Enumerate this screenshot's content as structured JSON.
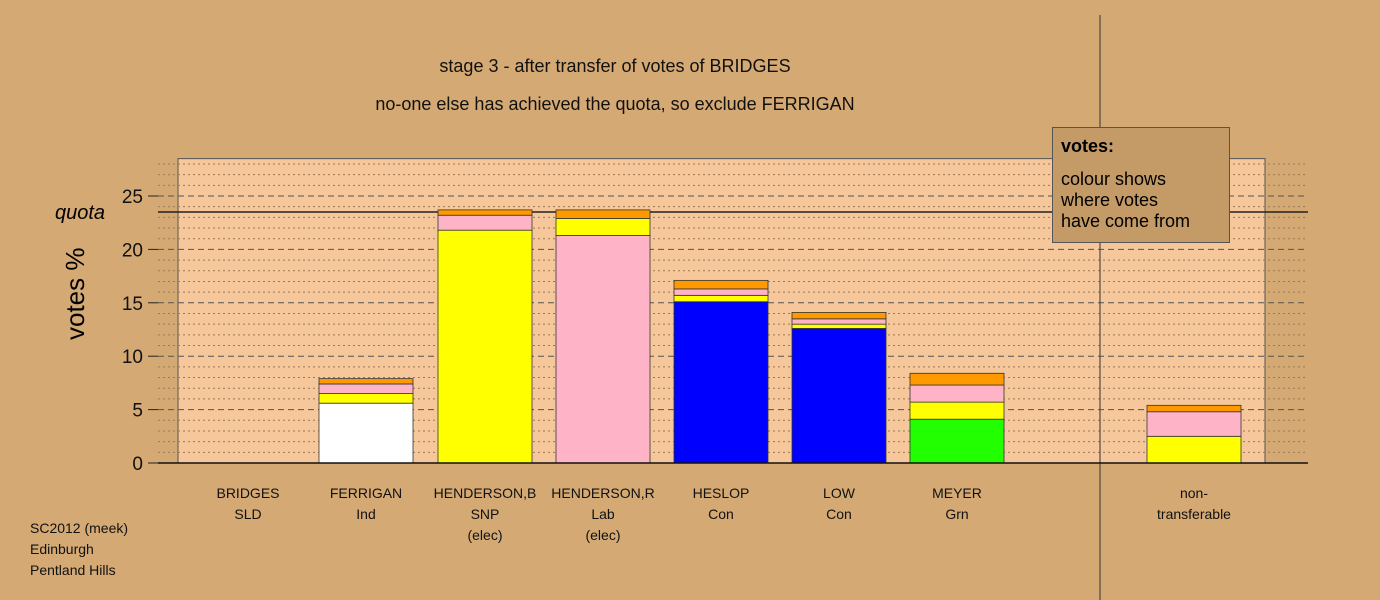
{
  "title_lines": [
    "stage 3 - after transfer of votes of BRIDGES",
    "no-one else has achieved the quota, so exclude FERRIGAN"
  ],
  "legend": {
    "title": "votes:",
    "body": "colour shows\nwhere votes\nhave come from"
  },
  "footer": [
    "SC2012 (meek)",
    "Edinburgh",
    "Pentland Hills"
  ],
  "colors": {
    "background": "#d4a974",
    "plot_background": "#f5c79a",
    "white": "#ffffff",
    "yellow": "#ffff00",
    "pink": "#ffb3c6",
    "blue": "#0000ff",
    "green": "#22ff00",
    "orange": "#ff9900"
  },
  "chart_data": {
    "type": "bar",
    "stacked": true,
    "ylabel": "votes %",
    "ylim": [
      0,
      28.5
    ],
    "yticks": [
      0,
      5,
      10,
      15,
      20,
      25
    ],
    "quota": 23.5,
    "quota_label": "quota",
    "grid": "dotted horizontal lines every 1, dashed every 5",
    "legend_position": "top-right",
    "categories": [
      {
        "name": "BRIDGES",
        "party": "SLD",
        "status": "",
        "segments": []
      },
      {
        "name": "FERRIGAN",
        "party": "Ind",
        "status": "",
        "segments": [
          {
            "color": "white",
            "value": 5.6
          },
          {
            "color": "yellow",
            "value": 0.9
          },
          {
            "color": "pink",
            "value": 0.9
          },
          {
            "color": "orange",
            "value": 0.5
          }
        ]
      },
      {
        "name": "HENDERSON,B",
        "party": "SNP",
        "status": "(elec)",
        "segments": [
          {
            "color": "yellow",
            "value": 21.8
          },
          {
            "color": "pink",
            "value": 1.4
          },
          {
            "color": "orange",
            "value": 0.5
          }
        ]
      },
      {
        "name": "HENDERSON,R",
        "party": "Lab",
        "status": "(elec)",
        "segments": [
          {
            "color": "pink",
            "value": 21.3
          },
          {
            "color": "yellow",
            "value": 1.6
          },
          {
            "color": "orange",
            "value": 0.8
          }
        ]
      },
      {
        "name": "HESLOP",
        "party": "Con",
        "status": "",
        "segments": [
          {
            "color": "blue",
            "value": 15.1
          },
          {
            "color": "yellow",
            "value": 0.6
          },
          {
            "color": "pink",
            "value": 0.6
          },
          {
            "color": "orange",
            "value": 0.8
          }
        ]
      },
      {
        "name": "LOW",
        "party": "Con",
        "status": "",
        "segments": [
          {
            "color": "blue",
            "value": 12.6
          },
          {
            "color": "yellow",
            "value": 0.4
          },
          {
            "color": "pink",
            "value": 0.5
          },
          {
            "color": "orange",
            "value": 0.6
          }
        ]
      },
      {
        "name": "MEYER",
        "party": "Grn",
        "status": "",
        "segments": [
          {
            "color": "green",
            "value": 4.1
          },
          {
            "color": "yellow",
            "value": 1.6
          },
          {
            "color": "pink",
            "value": 1.6
          },
          {
            "color": "orange",
            "value": 1.1
          }
        ]
      },
      {
        "name": "non-",
        "party": "transferable",
        "status": "",
        "segments": [
          {
            "color": "yellow",
            "value": 2.5
          },
          {
            "color": "pink",
            "value": 2.3
          },
          {
            "color": "orange",
            "value": 0.6
          }
        ]
      }
    ]
  }
}
